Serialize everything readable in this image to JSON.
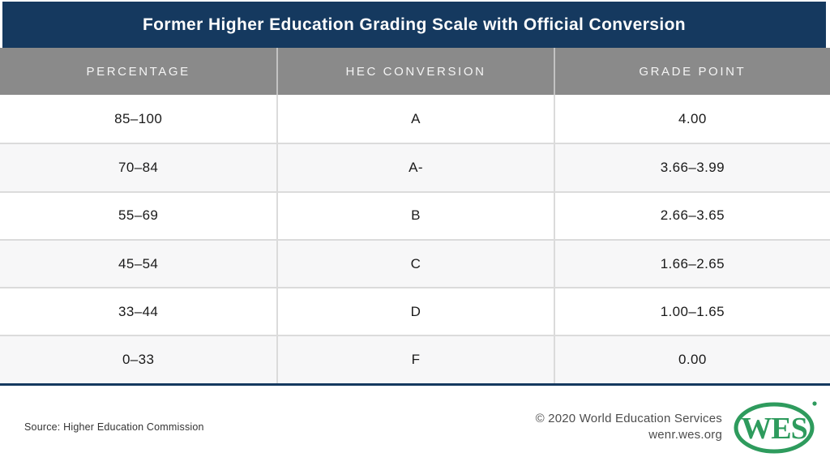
{
  "title": "Former Higher Education Grading Scale with Official Conversion",
  "chart_data": {
    "type": "table",
    "columns": [
      "PERCENTAGE",
      "HEC CONVERSION",
      "GRADE POINT"
    ],
    "rows": [
      [
        "85–100",
        "A",
        "4.00"
      ],
      [
        "70–84",
        "A-",
        "3.66–3.99"
      ],
      [
        "55–69",
        "B",
        "2.66–3.65"
      ],
      [
        "45–54",
        "C",
        "1.66–2.65"
      ],
      [
        "33–44",
        "D",
        "1.00–1.65"
      ],
      [
        "0–33",
        "F",
        "0.00"
      ]
    ]
  },
  "footer": {
    "source": "Source: Higher Education Commission",
    "copyright_line1": "© 2020 World Education Services",
    "copyright_line2": "wenr.wes.org",
    "logo_text": "WES"
  },
  "colors": {
    "navy": "#15395F",
    "header_gray": "#8A8A8A",
    "row_alt": "#F7F7F8",
    "border_light": "#DBDBDB",
    "wes_green": "#2E9B5D"
  }
}
